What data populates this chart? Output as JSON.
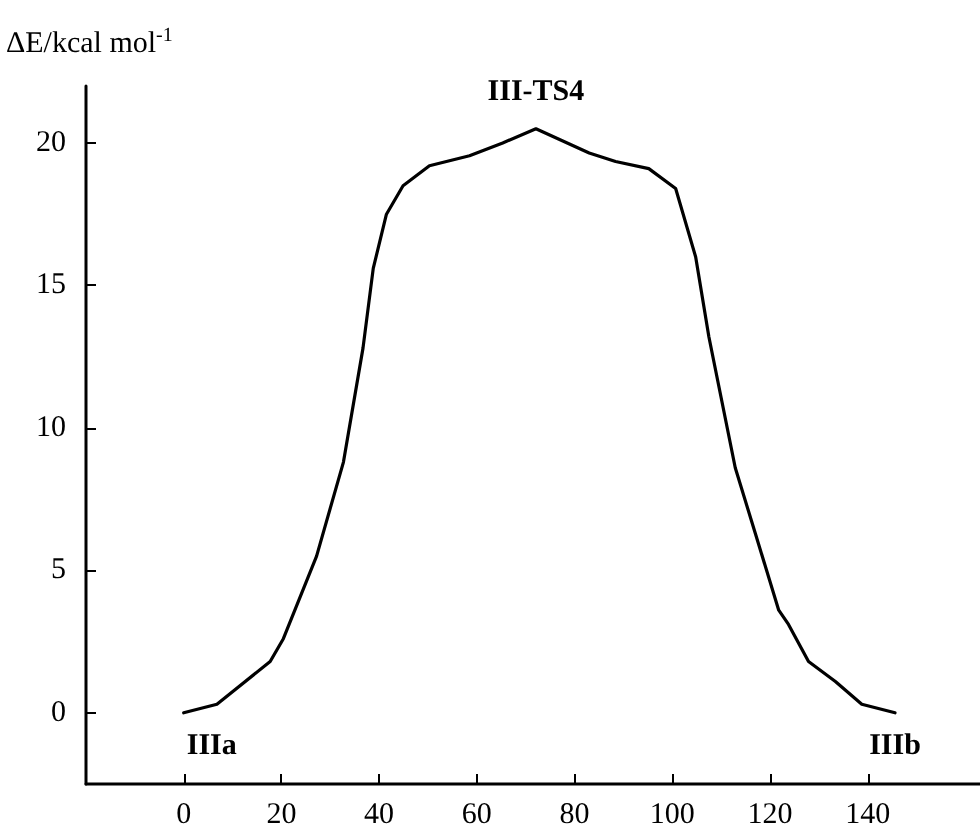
{
  "chart_data": {
    "type": "line",
    "ylabel": "ΔE/kcal mol$^{-1}$",
    "x": [
      0,
      6.8,
      17.7,
      20.4,
      27.2,
      32.7,
      36.7,
      38.8,
      41.5,
      44.9,
      50.3,
      58.5,
      65.3,
      72.1,
      83,
      88.4,
      95.2,
      100.7,
      104.8,
      107.5,
      110.2,
      112.9,
      117,
      121.8,
      123.8,
      127.9,
      133.4,
      138.8,
      145.6
    ],
    "series": [
      {
        "color": "#000000",
        "values": [
          0,
          0.3,
          1.8,
          2.6,
          5.5,
          8.8,
          12.8,
          15.6,
          17.5,
          18.5,
          19.2,
          19.55,
          20.0,
          20.5,
          19.65,
          19.35,
          19.1,
          18.4,
          16.0,
          13.2,
          10.9,
          8.6,
          6.3,
          3.6,
          3.1,
          1.8,
          1.1,
          0.3,
          0
        ]
      }
    ],
    "xlim": [
      -20,
      163
    ],
    "ylim": [
      -2.5,
      22
    ],
    "xticks": [
      0,
      20,
      40,
      60,
      80,
      100,
      120,
      140
    ],
    "yticks": [
      0,
      5,
      10,
      15,
      20
    ],
    "annotations": [
      {
        "text": "IIIa",
        "x": 0,
        "y": 0
      },
      {
        "text": "III-TS4",
        "x": 72.1,
        "y": 20.5
      },
      {
        "text": "IIIb",
        "x": 145.6,
        "y": 0
      }
    ],
    "grid": false,
    "marker": "none",
    "line_style": "solid"
  }
}
